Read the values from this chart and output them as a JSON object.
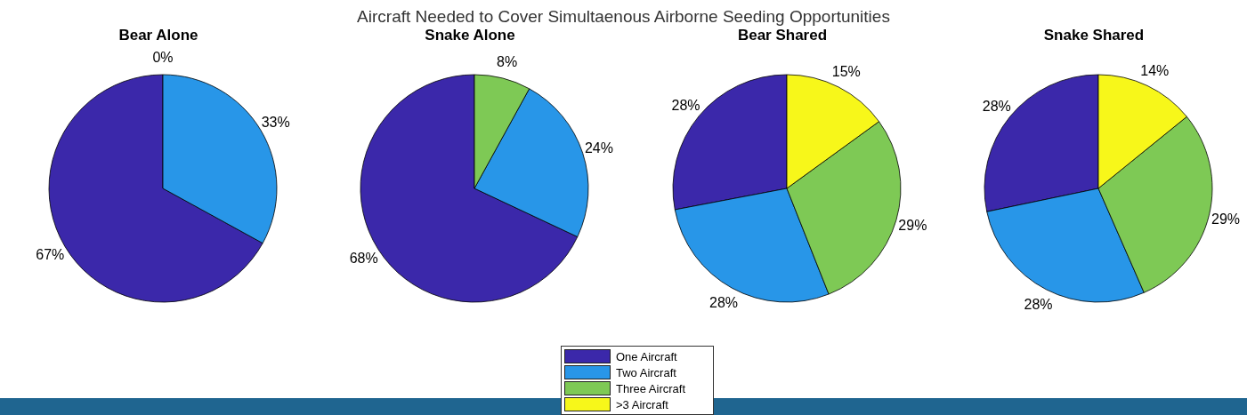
{
  "chart_data": [
    {
      "type": "pie",
      "title": "Bear Alone",
      "annotations": [
        "Aircraft Needed to Cover Simultaenous Airborne Seeding Opportunities"
      ],
      "categories": [
        null,
        null,
        null
      ],
      "values": [
        67,
        33,
        0
      ],
      "value_labels": [
        "67%",
        "33%",
        "0%"
      ],
      "colors": [
        "#3b28aa",
        "#2896e8",
        "#7ec955"
      ]
    },
    {
      "type": "pie",
      "title": "Snake Alone",
      "categories": [
        null,
        null,
        null
      ],
      "values": [
        68,
        24,
        8
      ],
      "value_labels": [
        "68%",
        "24%",
        "8%"
      ],
      "colors": [
        "#3b28aa",
        "#2896e8",
        "#7ec955"
      ]
    },
    {
      "type": "pie",
      "title": "Bear Shared",
      "categories": [
        null,
        null,
        null,
        null
      ],
      "values": [
        28,
        28,
        29,
        15
      ],
      "value_labels": [
        "28%",
        "28%",
        "29%",
        "15%"
      ],
      "colors": [
        "#3b28aa",
        "#2896e8",
        "#7ec955",
        "#f7f71a"
      ]
    },
    {
      "type": "pie",
      "title": "Snake Shared",
      "legend": "bottom",
      "categories": [
        "One Aircraft",
        "Two Aircraft",
        "Three Aircraft",
        ">3 Aircraft"
      ],
      "values": [
        28,
        28,
        29,
        14
      ],
      "value_labels": [
        "28%",
        "28%",
        "29%",
        "14%"
      ],
      "colors": [
        "#3b28aa",
        "#2896e8",
        "#7ec955",
        "#f7f71a"
      ]
    }
  ]
}
